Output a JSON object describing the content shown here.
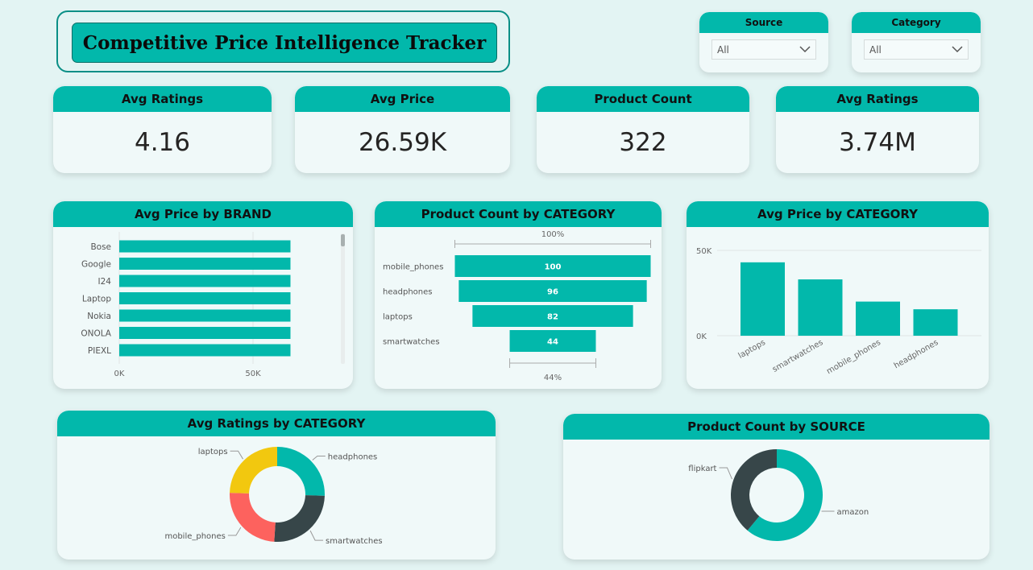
{
  "title": "Competitive Price Intelligence Tracker",
  "slicers": [
    {
      "label": "Source",
      "value": "All"
    },
    {
      "label": "Category",
      "value": "All"
    }
  ],
  "kpis": [
    {
      "label": "Avg Ratings",
      "value": "4.16"
    },
    {
      "label": "Avg Price",
      "value": "26.59K"
    },
    {
      "label": "Product Count",
      "value": "322"
    },
    {
      "label": "Avg Ratings",
      "value": "3.74M"
    }
  ],
  "colors": {
    "teal": "#02b8ab",
    "dark": "#374649",
    "red": "#fd625e",
    "yellow": "#f2c80f",
    "background": "#e3f4f3"
  },
  "chart_data": [
    {
      "id": "brand",
      "type": "bar",
      "orientation": "horizontal",
      "title": "Avg Price by BRAND",
      "categories": [
        "Bose",
        "Google",
        "I24",
        "Laptop",
        "Nokia",
        "ONOLA",
        "PIEXL"
      ],
      "values": [
        64000,
        64000,
        64000,
        64000,
        64000,
        64000,
        64000
      ],
      "xlim": [
        0,
        80000
      ],
      "xticks": [
        "0K",
        "50K"
      ],
      "xtick_values": [
        0,
        50000
      ],
      "grid": true
    },
    {
      "id": "funnel",
      "type": "bar",
      "subtype": "funnel",
      "title": "Product Count by CATEGORY",
      "categories": [
        "mobile_phones",
        "headphones",
        "laptops",
        "smartwatches"
      ],
      "values": [
        100,
        96,
        82,
        44
      ],
      "top_pct_label": "100%",
      "bottom_pct_label": "44%"
    },
    {
      "id": "avgprice-cat",
      "type": "bar",
      "title": "Avg Price by CATEGORY",
      "categories": [
        "laptops",
        "smartwatches",
        "mobile_phones",
        "headphones"
      ],
      "values": [
        43000,
        33000,
        20000,
        15500
      ],
      "ylim": [
        0,
        50000
      ],
      "yticks": [
        "0K",
        "50K"
      ],
      "ytick_values": [
        0,
        50000
      ],
      "grid": true
    },
    {
      "id": "ratings-donut",
      "type": "pie",
      "subtype": "donut",
      "title": "Avg Ratings by CATEGORY",
      "labels": [
        "headphones",
        "smartwatches",
        "mobile_phones",
        "laptops"
      ],
      "values": [
        25.5,
        25.5,
        24.5,
        24.5
      ],
      "colors": [
        "#02b8ab",
        "#374649",
        "#fd625e",
        "#f2c80f"
      ]
    },
    {
      "id": "source-donut",
      "type": "pie",
      "subtype": "donut",
      "title": "Product Count by SOURCE",
      "labels": [
        "amazon",
        "flipkart"
      ],
      "values": [
        61,
        39
      ],
      "colors": [
        "#02b8ab",
        "#374649"
      ]
    }
  ]
}
